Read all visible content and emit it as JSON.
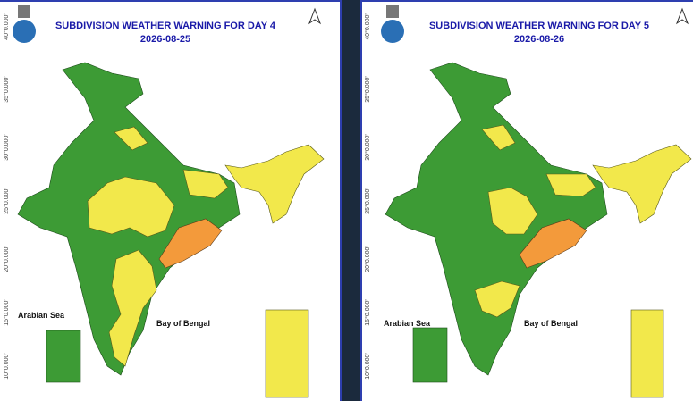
{
  "panels": [
    {
      "title": "SUBDIVISION WEATHER WARNING FOR DAY 4",
      "date": "2026-08-25",
      "lat_labels": [
        "40°0.000'",
        "35°0.000'",
        "30°0.000'",
        "25°0.000'",
        "20°0.000'",
        "15°0.000'",
        "10°0.000'"
      ],
      "sea_labels": [
        "Arabian Sea",
        "Bay of Bengal"
      ]
    },
    {
      "title": "SUBDIVISION WEATHER WARNING FOR DAY 5",
      "date": "2026-08-26",
      "lat_labels": [
        "40°0.000'",
        "35°0.000'",
        "30°0.000'",
        "25°0.000'",
        "20°0.000'",
        "15°0.000'",
        "10°0.000'"
      ],
      "sea_labels": [
        "Arabian Sea",
        "Bay of Bengal"
      ]
    }
  ]
}
